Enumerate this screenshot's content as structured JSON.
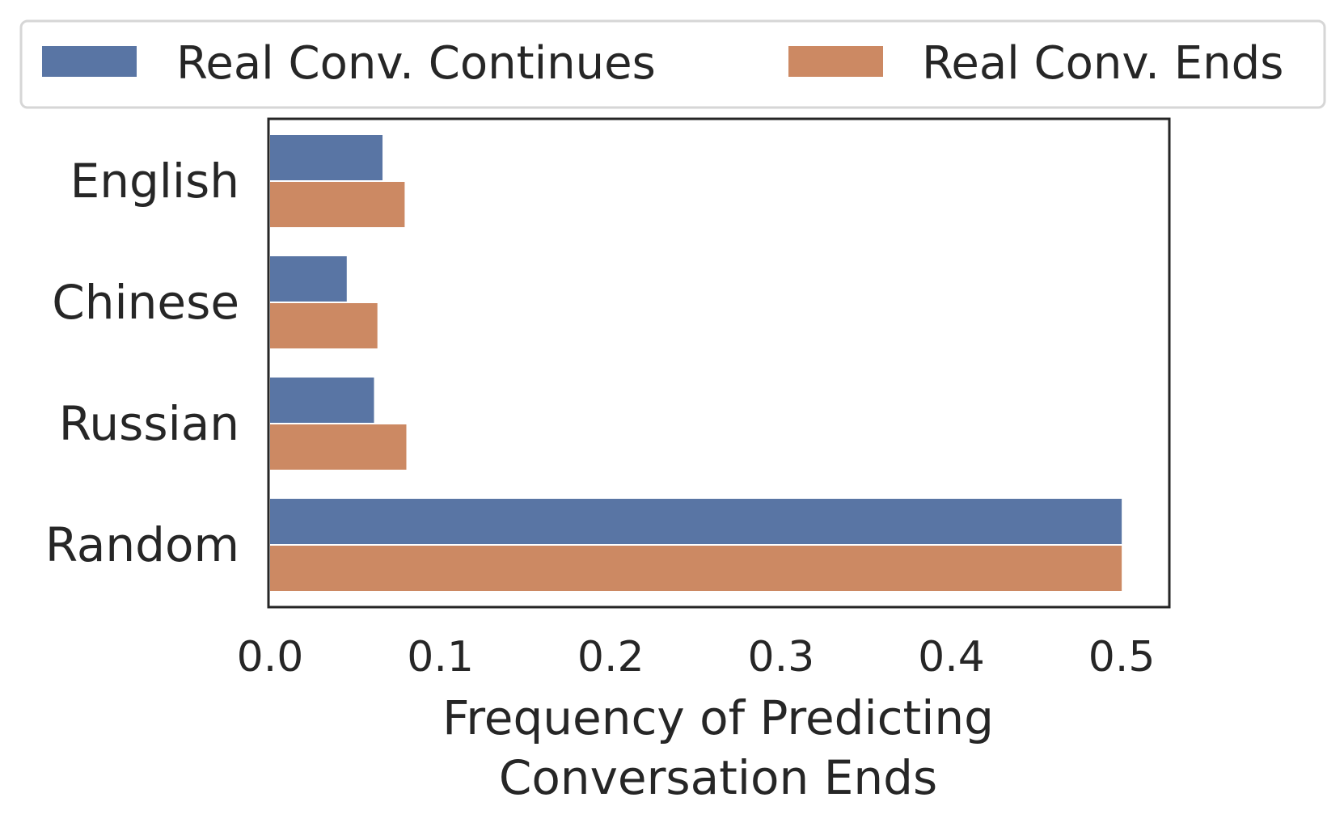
{
  "chart_data": {
    "type": "bar",
    "orientation": "horizontal",
    "categories": [
      "English",
      "Chinese",
      "Russian",
      "Random"
    ],
    "series": [
      {
        "name": "Real Conv. Continues",
        "color": "#5975a4",
        "values": [
          0.066,
          0.045,
          0.061,
          0.5
        ]
      },
      {
        "name": "Real Conv. Ends",
        "color": "#cc8963",
        "values": [
          0.079,
          0.063,
          0.08,
          0.5
        ]
      }
    ],
    "xlabel_lines": [
      "Frequency of Predicting",
      "Conversation Ends"
    ],
    "xlim": [
      0,
      0.527
    ],
    "xticks": [
      0.0,
      0.1,
      0.2,
      0.3,
      0.4,
      0.5
    ],
    "xtick_labels": [
      "0.0",
      "0.1",
      "0.2",
      "0.3",
      "0.4",
      "0.5"
    ],
    "grid": false,
    "legend_position": "top-outside",
    "legend_columns": 2
  }
}
